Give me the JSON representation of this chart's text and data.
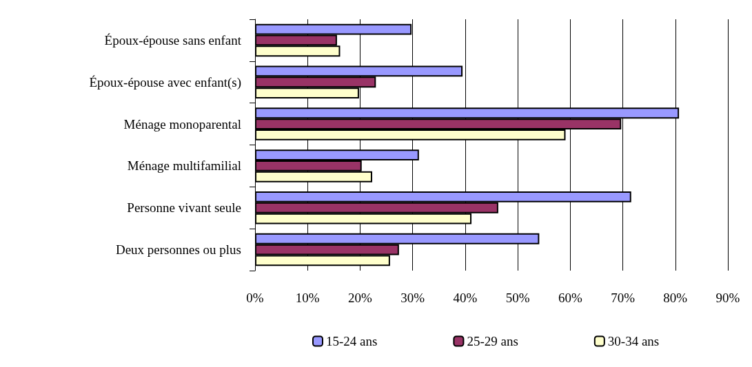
{
  "chart_data": {
    "type": "bar",
    "orientation": "horizontal",
    "categories": [
      "Époux-épouse sans enfant",
      "Époux-épouse avec enfant(s)",
      "Ménage monoparental",
      "Ménage multifamilial",
      "Personne vivant seule",
      "Deux personnes ou plus"
    ],
    "series": [
      {
        "name": "15-24 ans",
        "color": "#9999ff",
        "values": [
          29.8,
          39.5,
          80.7,
          31.2,
          71.6,
          54.1
        ]
      },
      {
        "name": "25-29 ans",
        "color": "#993366",
        "values": [
          15.6,
          23.0,
          69.7,
          20.3,
          46.3,
          27.4
        ]
      },
      {
        "name": "30-34 ans",
        "color": "#ffffcc",
        "values": [
          16.2,
          19.8,
          59.1,
          22.3,
          41.2,
          25.7
        ]
      }
    ],
    "xlim": [
      0,
      90
    ],
    "xticks": [
      {
        "value": 0,
        "label": "0%"
      },
      {
        "value": 10,
        "label": "10%"
      },
      {
        "value": 20,
        "label": "20%"
      },
      {
        "value": 30,
        "label": "30%"
      },
      {
        "value": 40,
        "label": "40%"
      },
      {
        "value": 50,
        "label": "50%"
      },
      {
        "value": 60,
        "label": "60%"
      },
      {
        "value": 70,
        "label": "70%"
      },
      {
        "value": 80,
        "label": "80%"
      },
      {
        "value": 90,
        "label": "90%"
      }
    ],
    "grid": "x",
    "legend": "bottom"
  }
}
